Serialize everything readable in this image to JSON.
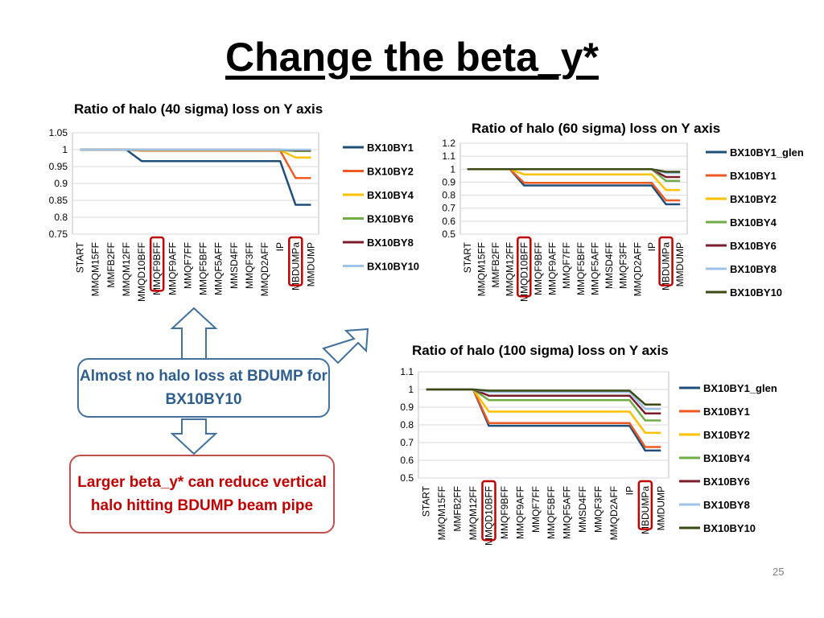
{
  "slide": {
    "title": "Change the beta_y*",
    "callout_top": "Almost no halo loss at BDUMP for BX10BY10",
    "callout_bottom": "Larger beta_y* can reduce vertical halo hitting BDUMP beam pipe",
    "page_number": "25"
  },
  "chart_data": [
    {
      "type": "line",
      "title": "Ratio of halo (40 sigma) loss on Y axis",
      "categories": [
        "START",
        "MMQM15FF",
        "MMFB2FF",
        "MMQM12FF",
        "MMQD10BFF",
        "MMQF9BFF",
        "MMQF9AFF",
        "MMQF7FF",
        "MMQF5BFF",
        "MMQF5AFF",
        "MMSD4FF",
        "MMQF3FF",
        "MMQD2AFF",
        "IP",
        "MBDUMPa",
        "MMDUMP"
      ],
      "ylim": [
        0.75,
        1.05
      ],
      "yticks": [
        "0.75",
        "0.8",
        "0.85",
        "0.9",
        "0.95",
        "1",
        "1.05"
      ],
      "highlighted_categories": [
        "MMQF9BFF",
        "MBDUMPa"
      ],
      "legend_position": "right",
      "series": [
        {
          "name": "BX10BY1",
          "color": "#1f4e79",
          "values": [
            1,
            1,
            1,
            1,
            0.966,
            0.966,
            0.966,
            0.966,
            0.966,
            0.966,
            0.966,
            0.966,
            0.966,
            0.966,
            0.837,
            0.837
          ]
        },
        {
          "name": "BX10BY2",
          "color": "#ed5a24",
          "values": [
            1,
            1,
            1,
            1,
            0.997,
            0.997,
            0.997,
            0.997,
            0.997,
            0.997,
            0.997,
            0.997,
            0.997,
            0.997,
            0.916,
            0.916
          ]
        },
        {
          "name": "BX10BY4",
          "color": "#ffc000",
          "values": [
            1,
            1,
            1,
            1,
            0.998,
            0.998,
            0.998,
            0.998,
            0.998,
            0.998,
            0.998,
            0.998,
            0.998,
            0.998,
            0.977,
            0.977
          ]
        },
        {
          "name": "BX10BY6",
          "color": "#70ad47",
          "values": [
            1,
            1,
            1,
            1,
            0.999,
            0.999,
            0.999,
            0.999,
            0.999,
            0.999,
            0.999,
            0.999,
            0.999,
            0.999,
            0.996,
            0.996
          ]
        },
        {
          "name": "BX10BY8",
          "color": "#7b1c2c",
          "values": [
            1,
            1,
            1,
            1,
            1,
            1,
            1,
            1,
            1,
            1,
            1,
            1,
            1,
            1,
            0.998,
            0.998
          ]
        },
        {
          "name": "BX10BY10",
          "color": "#9dc3e6",
          "values": [
            1,
            1,
            1,
            1,
            1,
            1,
            1,
            1,
            1,
            1,
            1,
            1,
            1,
            1,
            1,
            1
          ]
        }
      ]
    },
    {
      "type": "line",
      "title": "Ratio of halo (60 sigma) loss on Y axis",
      "categories": [
        "START",
        "MMQM15FF",
        "MMFB2FF",
        "MMQM12FF",
        "MMQD10BFF",
        "MMQF9BFF",
        "MMQF9AFF",
        "MMQF7FF",
        "MMQF5BFF",
        "MMQF5AFF",
        "MMSD4FF",
        "MMQF3FF",
        "MMQD2AFF",
        "IP",
        "MBDUMPa",
        "MMDUMP"
      ],
      "ylim": [
        0.5,
        1.2
      ],
      "yticks": [
        "0.5",
        "0.6",
        "0.7",
        "0.8",
        "0.9",
        "1",
        "1.1",
        "1.2"
      ],
      "highlighted_categories": [
        "MMQD10BFF",
        "MBDUMPa"
      ],
      "legend_position": "right",
      "series": [
        {
          "name": "BX10BY1_glen",
          "color": "#1f4e79",
          "values": [
            1,
            1,
            1,
            1,
            0.875,
            0.875,
            0.875,
            0.875,
            0.875,
            0.875,
            0.875,
            0.875,
            0.875,
            0.875,
            0.73,
            0.73
          ]
        },
        {
          "name": "BX10BY1",
          "color": "#ed5a24",
          "values": [
            1,
            1,
            1,
            1,
            0.895,
            0.895,
            0.895,
            0.895,
            0.895,
            0.895,
            0.895,
            0.895,
            0.895,
            0.895,
            0.76,
            0.76
          ]
        },
        {
          "name": "BX10BY2",
          "color": "#ffc000",
          "values": [
            1,
            1,
            1,
            1,
            0.96,
            0.96,
            0.96,
            0.96,
            0.96,
            0.96,
            0.96,
            0.96,
            0.96,
            0.96,
            0.84,
            0.84
          ]
        },
        {
          "name": "BX10BY4",
          "color": "#70ad47",
          "values": [
            1,
            1,
            1,
            1,
            1,
            1,
            1,
            1,
            1,
            1,
            1,
            1,
            1,
            1,
            0.91,
            0.91
          ]
        },
        {
          "name": "BX10BY6",
          "color": "#7b1c2c",
          "values": [
            1,
            1,
            1,
            1,
            1,
            1,
            1,
            1,
            1,
            1,
            1,
            1,
            1,
            1,
            0.94,
            0.94
          ]
        },
        {
          "name": "BX10BY8",
          "color": "#9dc3e6",
          "values": [
            1,
            1,
            1,
            1,
            1,
            1,
            1,
            1,
            1,
            1,
            1,
            1,
            1,
            1,
            0.97,
            0.97
          ]
        },
        {
          "name": "BX10BY10",
          "color": "#3a4a12",
          "values": [
            1,
            1,
            1,
            1,
            1,
            1,
            1,
            1,
            1,
            1,
            1,
            1,
            1,
            1,
            0.98,
            0.98
          ]
        }
      ]
    },
    {
      "type": "line",
      "title": "Ratio of halo (100 sigma) loss on Y axis",
      "categories": [
        "START",
        "MMQM15FF",
        "MMFB2FF",
        "MMQM12FF",
        "MMQD10BFF",
        "MMQF9BFF",
        "MMQF9AFF",
        "MMQF7FF",
        "MMQF5BFF",
        "MMQF5AFF",
        "MMSD4FF",
        "MMQF3FF",
        "MMQD2AFF",
        "IP",
        "MBDUMPa",
        "MMDUMP"
      ],
      "ylim": [
        0.5,
        1.1
      ],
      "yticks": [
        "0.5",
        "0.6",
        "0.7",
        "0.8",
        "0.9",
        "1",
        "1.1"
      ],
      "highlighted_categories": [
        "MMQD10BFF",
        "MBDUMPa"
      ],
      "legend_position": "right",
      "series": [
        {
          "name": "BX10BY1_glen",
          "color": "#1f4e79",
          "values": [
            1,
            1,
            1,
            1,
            0.795,
            0.795,
            0.795,
            0.795,
            0.795,
            0.795,
            0.795,
            0.795,
            0.795,
            0.795,
            0.655,
            0.655
          ]
        },
        {
          "name": "BX10BY1",
          "color": "#ed5a24",
          "values": [
            1,
            1,
            1,
            1,
            0.81,
            0.81,
            0.81,
            0.81,
            0.81,
            0.81,
            0.81,
            0.81,
            0.81,
            0.81,
            0.675,
            0.675
          ]
        },
        {
          "name": "BX10BY2",
          "color": "#ffc000",
          "values": [
            1,
            1,
            1,
            1,
            0.875,
            0.875,
            0.875,
            0.875,
            0.875,
            0.875,
            0.875,
            0.875,
            0.875,
            0.875,
            0.755,
            0.755
          ]
        },
        {
          "name": "BX10BY4",
          "color": "#70ad47",
          "values": [
            1,
            1,
            1,
            1,
            0.94,
            0.94,
            0.94,
            0.94,
            0.94,
            0.94,
            0.94,
            0.94,
            0.94,
            0.94,
            0.825,
            0.825
          ]
        },
        {
          "name": "BX10BY6",
          "color": "#7b1c2c",
          "values": [
            1,
            1,
            1,
            1,
            0.965,
            0.965,
            0.965,
            0.965,
            0.965,
            0.965,
            0.965,
            0.965,
            0.965,
            0.965,
            0.865,
            0.865
          ]
        },
        {
          "name": "BX10BY8",
          "color": "#9dc3e6",
          "values": [
            1,
            1,
            1,
            1,
            0.985,
            0.985,
            0.985,
            0.985,
            0.985,
            0.985,
            0.985,
            0.985,
            0.985,
            0.985,
            0.89,
            0.89
          ]
        },
        {
          "name": "BX10BY10",
          "color": "#3a4a12",
          "values": [
            1,
            1,
            1,
            1,
            0.993,
            0.993,
            0.993,
            0.993,
            0.993,
            0.993,
            0.993,
            0.993,
            0.993,
            0.993,
            0.915,
            0.915
          ]
        }
      ]
    }
  ]
}
